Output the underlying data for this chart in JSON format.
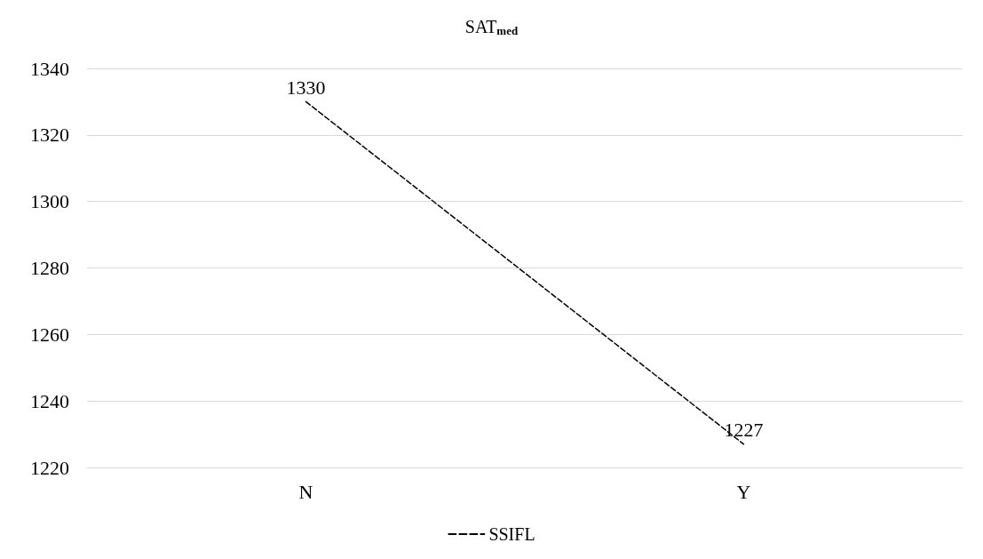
{
  "chart_data": {
    "type": "line",
    "title": "SAT$_{med}$",
    "categories": [
      "N",
      "Y"
    ],
    "series": [
      {
        "name": "SSIFL",
        "color": "#000000",
        "values": [
          1330,
          1227
        ]
      }
    ],
    "ylim": [
      1220,
      1340
    ],
    "yticks": [
      1220,
      1240,
      1260,
      1280,
      1300,
      1320,
      1340
    ],
    "grid": "y",
    "legend": "bottom",
    "data_labels": true,
    "line_style": "dashed",
    "marker": "none"
  }
}
